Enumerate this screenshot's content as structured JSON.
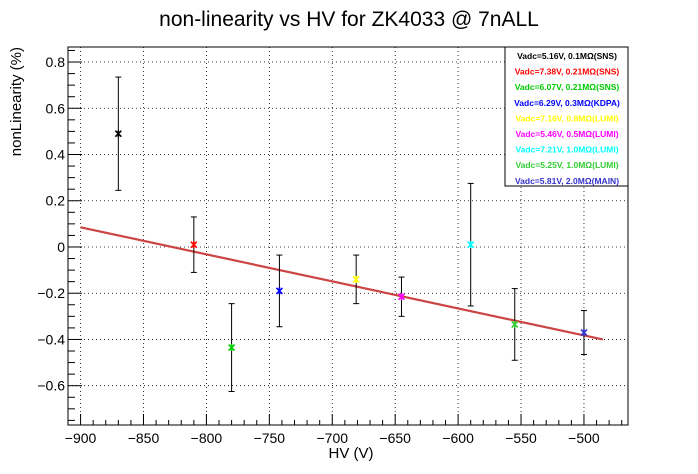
{
  "chart_data": {
    "type": "scatter",
    "title": "non-linearity vs HV for ZK4033 @ 7nALL",
    "xlabel": "HV (V)",
    "ylabel": "nonLinearity (%)",
    "xlim": [
      -910,
      -465
    ],
    "ylim": [
      -0.77,
      0.865
    ],
    "xticks": [
      -900,
      -850,
      -800,
      -750,
      -700,
      -650,
      -600,
      -550,
      -500
    ],
    "xtick_labels": [
      "−900",
      "−850",
      "−800",
      "−750",
      "−700",
      "−650",
      "−600",
      "−550",
      "−500"
    ],
    "yticks": [
      -0.6,
      -0.4,
      -0.2,
      0,
      0.2,
      0.4,
      0.6,
      0.8
    ],
    "ytick_labels": [
      "−0.6",
      "−0.4",
      "−0.2",
      "0",
      "0.2",
      "0.4",
      "0.6",
      "0.8"
    ],
    "grid": true,
    "legend_position": "top-right",
    "series": [
      {
        "name": "Vadc=5.16V, 0.1MΩ(SNS)",
        "color": "#000000",
        "x": -870,
        "y": 0.49,
        "err": 0.245
      },
      {
        "name": "Vadc=7.38V, 0.21MΩ(SNS)",
        "color": "#ff0000",
        "x": -810,
        "y": 0.01,
        "err": 0.12
      },
      {
        "name": "Vadc=6.07V, 0.21MΩ(SNS)",
        "color": "#00cc00",
        "x": -780,
        "y": -0.435,
        "err": 0.19
      },
      {
        "name": "Vadc=6.29V, 0.3MΩ(KDPA)",
        "color": "#0000ff",
        "x": -742,
        "y": -0.19,
        "err": 0.155
      },
      {
        "name": "Vadc=7.16V, 0.8MΩ(LUMI)",
        "color": "#ffff00",
        "x": -681,
        "y": -0.14,
        "err": 0.105
      },
      {
        "name": "Vadc=5.46V, 0.5MΩ(LUMI)",
        "color": "#ff00ff",
        "x": -645,
        "y": -0.215,
        "err": 0.085
      },
      {
        "name": "Vadc=7.21V, 1.0MΩ(LUMI)",
        "color": "#00ffff",
        "x": -590,
        "y": 0.01,
        "err": 0.265
      },
      {
        "name": "Vadc=5.25V, 1.0MΩ(LUMI)",
        "color": "#33cc33",
        "x": -555,
        "y": -0.335,
        "err": 0.155
      },
      {
        "name": "Vadc=5.81V, 2.0MΩ(MAIN)",
        "color": "#3333cc",
        "x": -500,
        "y": -0.37,
        "err": 0.095
      }
    ],
    "fit_line": {
      "color": "#cc4444",
      "x": [
        -900,
        -485
      ],
      "y": [
        0.085,
        -0.4
      ]
    }
  }
}
